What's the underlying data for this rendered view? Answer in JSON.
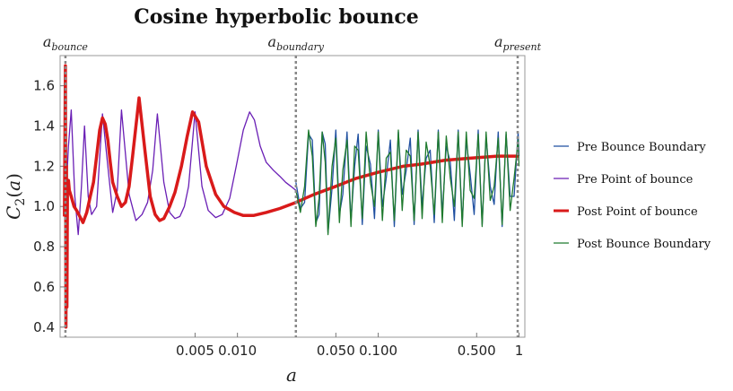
{
  "chart_data": {
    "type": "line",
    "title": "Cosine hyperbolic bounce",
    "xlabel": "a",
    "ylabel": "C2(a)",
    "x_scale": "log",
    "xlim": [
      0.00055,
      1.1
    ],
    "ylim": [
      0.35,
      1.75
    ],
    "x_ticks": [
      {
        "value": 0.005,
        "label": "0.005"
      },
      {
        "value": 0.01,
        "label": "0.010"
      },
      {
        "value": 0.05,
        "label": "0.050"
      },
      {
        "value": 0.1,
        "label": "0.100"
      },
      {
        "value": 0.5,
        "label": "0.500"
      },
      {
        "value": 1,
        "label": "1"
      }
    ],
    "y_ticks": [
      {
        "value": 0.4,
        "label": "0.4"
      },
      {
        "value": 0.6,
        "label": "0.6"
      },
      {
        "value": 0.8,
        "label": "0.8"
      },
      {
        "value": 1.0,
        "label": "1.0"
      },
      {
        "value": 1.2,
        "label": "1.2"
      },
      {
        "value": 1.4,
        "label": "1.4"
      },
      {
        "value": 1.6,
        "label": "1.6"
      }
    ],
    "vertical_lines": [
      {
        "x": 0.0006,
        "label_main": "a",
        "label_sub": "bounce"
      },
      {
        "x": 0.026,
        "label_main": "a",
        "label_sub": "boundary"
      },
      {
        "x": 1,
        "label_main": "a",
        "label_sub": "present"
      }
    ],
    "legend_position": "right",
    "series": [
      {
        "name": "Pre Bounce Boundary",
        "color": "#1f4fa0",
        "width": 1.3,
        "x": [
          0.026,
          0.028,
          0.03,
          0.032,
          0.034,
          0.036,
          0.038,
          0.04,
          0.042,
          0.044,
          0.047,
          0.05,
          0.053,
          0.056,
          0.06,
          0.064,
          0.068,
          0.072,
          0.077,
          0.082,
          0.088,
          0.094,
          0.1,
          0.107,
          0.114,
          0.122,
          0.13,
          0.139,
          0.148,
          0.158,
          0.169,
          0.18,
          0.192,
          0.205,
          0.219,
          0.234,
          0.25,
          0.267,
          0.285,
          0.304,
          0.325,
          0.347,
          0.37,
          0.395,
          0.422,
          0.45,
          0.48,
          0.513,
          0.547,
          0.584,
          0.624,
          0.666,
          0.711,
          0.759,
          0.81,
          0.865,
          0.923,
          0.985,
          1.0
        ],
        "y": [
          1.12,
          0.99,
          1.02,
          1.36,
          1.33,
          0.92,
          0.96,
          1.37,
          1.31,
          0.87,
          1.09,
          1.38,
          0.96,
          1.06,
          1.37,
          0.93,
          1.2,
          1.36,
          0.91,
          1.3,
          1.21,
          0.94,
          1.38,
          1.0,
          1.14,
          1.33,
          0.9,
          1.37,
          1.06,
          1.18,
          1.34,
          0.91,
          1.38,
          1.0,
          1.24,
          1.28,
          0.92,
          1.38,
          0.96,
          1.3,
          1.22,
          0.93,
          1.38,
          0.92,
          1.33,
          1.16,
          0.96,
          1.38,
          0.91,
          1.35,
          1.1,
          1.01,
          1.37,
          0.9,
          1.36,
          1.05,
          1.05,
          1.37,
          1.25
        ]
      },
      {
        "name": "Pre Point of bounce",
        "color": "#6a1fb5",
        "width": 1.3,
        "x": [
          0.0006,
          0.00063,
          0.00066,
          0.0007,
          0.00074,
          0.00078,
          0.00082,
          0.00087,
          0.00092,
          0.001,
          0.0011,
          0.0012,
          0.0013,
          0.0014,
          0.0015,
          0.0017,
          0.0019,
          0.0021,
          0.0023,
          0.0025,
          0.0027,
          0.003,
          0.0033,
          0.0036,
          0.0039,
          0.0042,
          0.0045,
          0.005,
          0.0056,
          0.0062,
          0.007,
          0.0078,
          0.0088,
          0.0098,
          0.011,
          0.0122,
          0.0132,
          0.0145,
          0.016,
          0.018,
          0.02,
          0.022,
          0.024,
          0.026
        ],
        "y": [
          1.0,
          1.3,
          1.48,
          1.05,
          0.86,
          1.1,
          1.4,
          1.05,
          0.96,
          1.0,
          1.46,
          1.2,
          0.97,
          1.08,
          1.48,
          1.06,
          0.93,
          0.96,
          1.02,
          1.18,
          1.46,
          1.12,
          0.97,
          0.94,
          0.95,
          1.0,
          1.1,
          1.47,
          1.1,
          0.98,
          0.945,
          0.96,
          1.04,
          1.2,
          1.38,
          1.47,
          1.43,
          1.3,
          1.22,
          1.18,
          1.15,
          1.12,
          1.1,
          1.08
        ]
      },
      {
        "name": "Post Point of bounce",
        "color": "#d91a1a",
        "width": 3.5,
        "x": [
          0.00059,
          0.0006,
          0.000605,
          0.00061,
          0.000615,
          0.00062,
          0.00063,
          0.00064,
          0.00066,
          0.00069,
          0.00072,
          0.00076,
          0.0008,
          0.00085,
          0.0009,
          0.00095,
          0.001,
          0.00105,
          0.0011,
          0.00115,
          0.0012,
          0.00125,
          0.0013,
          0.0014,
          0.0015,
          0.0016,
          0.0017,
          0.0018,
          0.002,
          0.0022,
          0.0024,
          0.0026,
          0.0028,
          0.003,
          0.0033,
          0.0036,
          0.004,
          0.0044,
          0.0048,
          0.0053,
          0.006,
          0.007,
          0.008,
          0.0095,
          0.011,
          0.013,
          0.016,
          0.02,
          0.026,
          0.035,
          0.05,
          0.07,
          0.1,
          0.15,
          0.2,
          0.3,
          0.45,
          0.7,
          1.0
        ],
        "y": [
          0.95,
          1.7,
          0.4,
          1.2,
          0.5,
          1.1,
          1.13,
          1.08,
          1.05,
          1.0,
          0.98,
          0.95,
          0.92,
          0.97,
          1.05,
          1.12,
          1.25,
          1.38,
          1.44,
          1.41,
          1.33,
          1.22,
          1.12,
          1.05,
          1.0,
          1.02,
          1.1,
          1.25,
          1.54,
          1.28,
          1.05,
          0.96,
          0.93,
          0.94,
          1.0,
          1.07,
          1.2,
          1.35,
          1.47,
          1.42,
          1.2,
          1.06,
          1.0,
          0.97,
          0.955,
          0.955,
          0.97,
          0.99,
          1.02,
          1.06,
          1.1,
          1.14,
          1.17,
          1.2,
          1.21,
          1.23,
          1.24,
          1.25,
          1.25
        ]
      },
      {
        "name": "Post Bounce Boundary",
        "color": "#1f7a2e",
        "width": 1.3,
        "x": [
          0.026,
          0.028,
          0.03,
          0.032,
          0.034,
          0.036,
          0.038,
          0.04,
          0.042,
          0.044,
          0.047,
          0.05,
          0.053,
          0.056,
          0.06,
          0.064,
          0.068,
          0.072,
          0.077,
          0.082,
          0.088,
          0.094,
          0.1,
          0.107,
          0.114,
          0.122,
          0.13,
          0.139,
          0.148,
          0.158,
          0.169,
          0.18,
          0.192,
          0.205,
          0.219,
          0.234,
          0.25,
          0.267,
          0.285,
          0.304,
          0.325,
          0.347,
          0.37,
          0.395,
          0.422,
          0.45,
          0.48,
          0.513,
          0.547,
          0.584,
          0.624,
          0.666,
          0.711,
          0.759,
          0.81,
          0.865,
          0.923,
          0.985,
          1.0
        ],
        "y": [
          1.08,
          0.97,
          1.1,
          1.38,
          1.25,
          0.9,
          1.04,
          1.37,
          1.22,
          0.86,
          1.2,
          1.34,
          0.92,
          1.18,
          1.33,
          0.9,
          1.3,
          1.28,
          0.94,
          1.37,
          1.12,
          1.0,
          1.37,
          0.93,
          1.24,
          1.27,
          0.93,
          1.38,
          0.98,
          1.28,
          1.25,
          0.93,
          1.37,
          0.94,
          1.32,
          1.2,
          0.96,
          1.37,
          0.92,
          1.35,
          1.14,
          1.0,
          1.37,
          0.9,
          1.37,
          1.08,
          1.04,
          1.36,
          0.9,
          1.37,
          1.03,
          1.1,
          1.34,
          0.91,
          1.37,
          0.98,
          1.14,
          1.33,
          1.2
        ]
      }
    ]
  }
}
